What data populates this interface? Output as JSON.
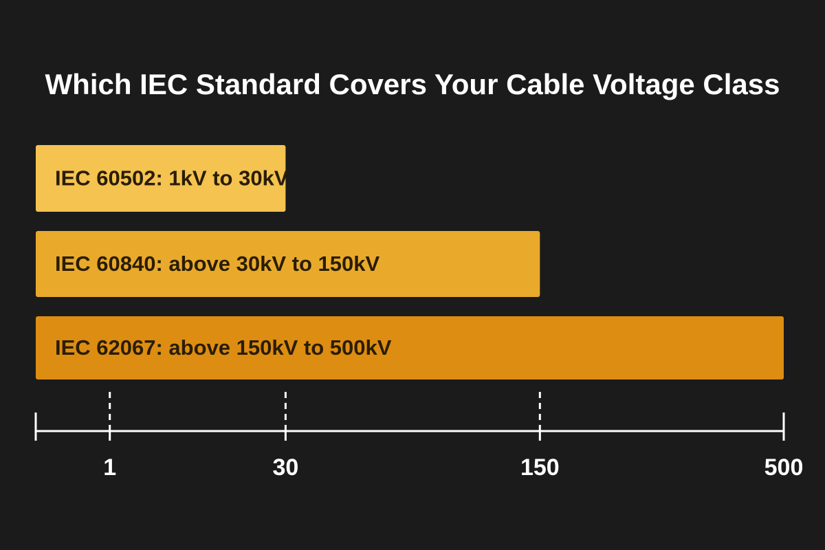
{
  "chart_data": {
    "type": "bar",
    "orientation": "horizontal",
    "title": "Which IEC Standard Covers Your Cable Voltage Class",
    "categories": [
      "IEC 60502: 1kV to 30kV",
      "IEC 60840: above 30kV to 150kV",
      "IEC 62067: above 150kV to 500kV"
    ],
    "values": [
      30,
      150,
      500
    ],
    "colors": [
      "#f4c350",
      "#e9aa2b",
      "#dd8d12"
    ],
    "xlim": [
      0,
      500
    ],
    "xticks": [
      1,
      30,
      150,
      500
    ]
  }
}
